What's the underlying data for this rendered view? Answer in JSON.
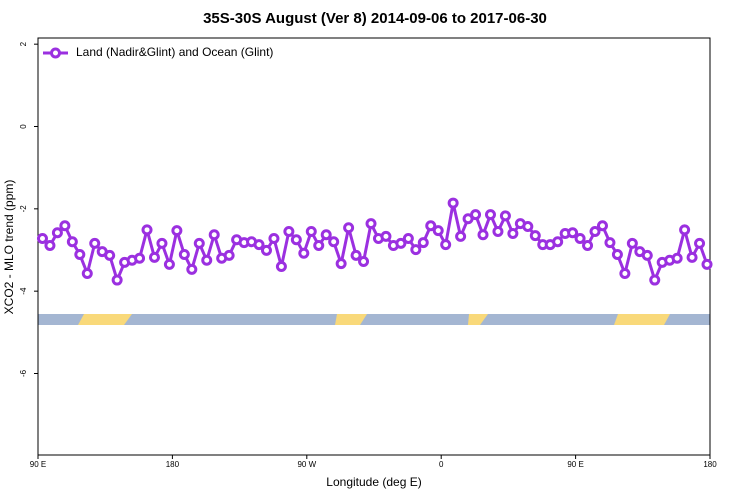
{
  "chart_data": {
    "type": "line",
    "title": "35S-30S August (Ver 8)   2014-09-06 to 2017-06-30",
    "x_label": "Longitude (deg E)",
    "y_label": "XCO2 - MLO trend (ppm)",
    "xlim": [
      90,
      540
    ],
    "xticks": [
      {
        "value": 90,
        "label": "90 E"
      },
      180,
      {
        "value": 270,
        "label": "90 W"
      },
      {
        "value": 360,
        "label": "0"
      },
      {
        "value": 450,
        "label": "90 E"
      },
      {
        "value": 540,
        "label": "180"
      }
    ],
    "ylim": [
      -7.98,
      2.15
    ],
    "yticks": [
      -6,
      -4,
      -2,
      0,
      2
    ],
    "legend_position": "top-left",
    "x": [
      93,
      98,
      103,
      108,
      113,
      118,
      123,
      128,
      133,
      138,
      143,
      148,
      153,
      158,
      163,
      168,
      173,
      178,
      183,
      188,
      193,
      198,
      203,
      208,
      213,
      218,
      223,
      228,
      233,
      238,
      243,
      248,
      253,
      258,
      263,
      268,
      273,
      278,
      283,
      288,
      293,
      298,
      303,
      308,
      313,
      318,
      323,
      328,
      333,
      338,
      343,
      348,
      353,
      358,
      363,
      368,
      373,
      378,
      383,
      388,
      393,
      398,
      403,
      408,
      413,
      418,
      423,
      428,
      433,
      438,
      443,
      448,
      453,
      458,
      463,
      468,
      473,
      478,
      483,
      488,
      493,
      498,
      503,
      508,
      513,
      518,
      523,
      528,
      533,
      538
    ],
    "series": [
      {
        "name": "Land (Nadir&Glint) and Ocean (Glint)",
        "color": "#9b30e0",
        "values": [
          -2.72,
          -2.89,
          -2.58,
          -2.41,
          -2.8,
          -3.11,
          -3.57,
          -2.84,
          -3.04,
          -3.13,
          -3.73,
          -3.3,
          -3.25,
          -3.2,
          -2.51,
          -3.18,
          -2.84,
          -3.35,
          -2.53,
          -3.11,
          -3.47,
          -2.84,
          -3.25,
          -2.63,
          -3.2,
          -3.13,
          -2.75,
          -2.82,
          -2.8,
          -2.87,
          -3.01,
          -2.72,
          -3.4,
          -2.55,
          -2.75,
          -3.08,
          -2.55,
          -2.89,
          -2.63,
          -2.8,
          -3.33,
          -2.46,
          -3.13,
          -3.28,
          -2.36,
          -2.72,
          -2.67,
          -2.89,
          -2.84,
          -2.72,
          -2.99,
          -2.82,
          -2.41,
          -2.53,
          -2.87,
          -1.86,
          -2.67,
          -2.24,
          -2.14,
          -2.63,
          -2.14,
          -2.55,
          -2.17,
          -2.6,
          -2.36,
          -2.43,
          -2.65,
          -2.87,
          -2.87,
          -2.8,
          -2.6,
          -2.58,
          -2.72,
          -2.89,
          -2.55,
          -2.41,
          -2.82,
          -3.11,
          -3.57,
          -2.84,
          -3.04,
          -3.13,
          -3.73,
          -3.3,
          -3.25,
          -3.2,
          -2.51,
          -3.18,
          -2.84,
          -3.35
        ]
      }
    ]
  }
}
